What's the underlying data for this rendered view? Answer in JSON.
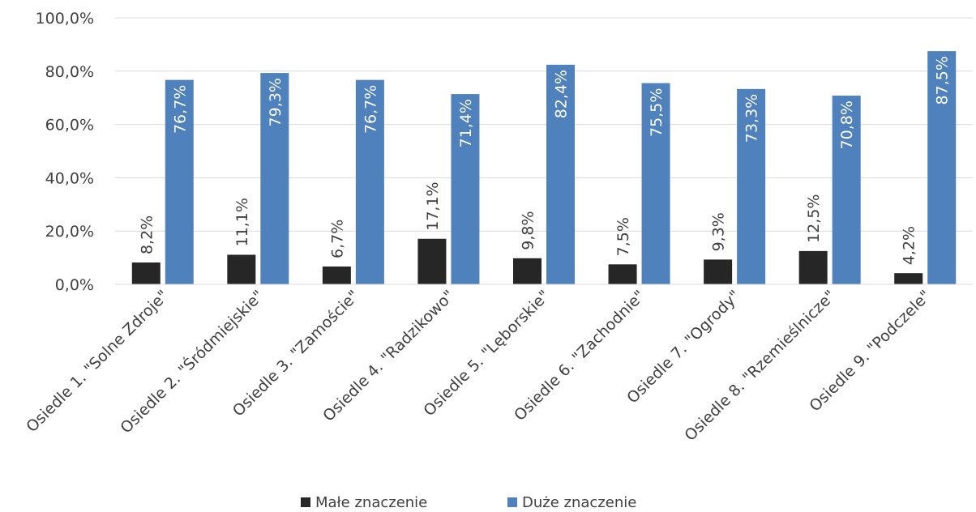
{
  "chart_data": {
    "type": "bar",
    "categories": [
      "Osiedle 1. \"Solne Zdroje\"",
      "Osiedle 2. \"Śródmiejskie\"",
      "Osiedle 3. \"Zamoście\"",
      "Osiedle 4. \"Radzikowo\"",
      "Osiedle 5. \"Lęborskie\"",
      "Osiedle 6. \"Zachodnie\"",
      "Osiedle 7. \"Ogrody\"",
      "Osiedle 8. \"Rzemieślnicze\"",
      "Osiedle 9. \"Podczele\""
    ],
    "series": [
      {
        "name": "Małe znaczenie",
        "color": "#262626",
        "values": [
          8.2,
          11.1,
          6.7,
          17.1,
          9.8,
          7.5,
          9.3,
          12.5,
          4.2
        ],
        "labels": [
          "8,2%",
          "11,1%",
          "6,7%",
          "17,1%",
          "9,8%",
          "7,5%",
          "9,3%",
          "12,5%",
          "4,2%"
        ]
      },
      {
        "name": "Duże znaczenie",
        "color": "#4f81bd",
        "values": [
          76.7,
          79.3,
          76.7,
          71.4,
          82.4,
          75.5,
          73.3,
          70.8,
          87.5
        ],
        "labels": [
          "76,7%",
          "79,3%",
          "76,7%",
          "71,4%",
          "82,4%",
          "75,5%",
          "73,3%",
          "70,8%",
          "87,5%"
        ]
      }
    ],
    "yticks": [
      "0,0%",
      "20,0%",
      "40,0%",
      "60,0%",
      "80,0%",
      "100,0%"
    ],
    "ylim": [
      0,
      100
    ],
    "grid": true,
    "legend": "bottom",
    "title": "",
    "xlabel": "",
    "ylabel": ""
  }
}
